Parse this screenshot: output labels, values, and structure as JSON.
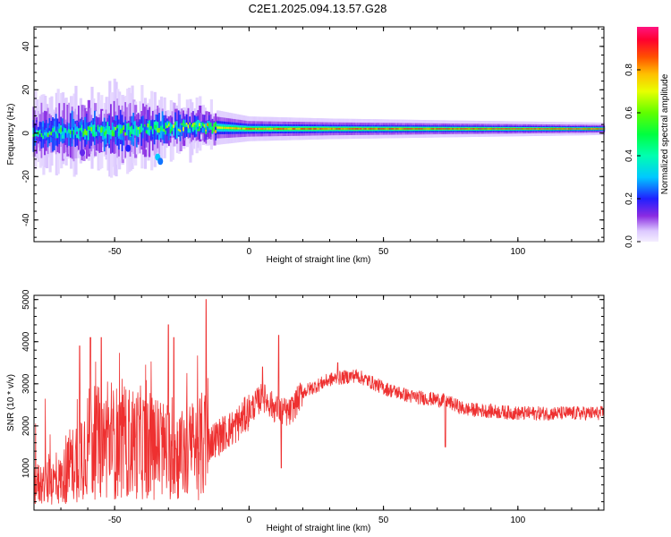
{
  "title": "C2E1.2025.094.13.57.G28",
  "chart_data": [
    {
      "type": "heatmap",
      "xlabel": "Height of straight line (km)",
      "ylabel": "Frequency (Hz)",
      "xlim": [
        -80,
        132
      ],
      "ylim": [
        -50,
        49
      ],
      "xticks": [
        -50,
        0,
        50,
        100
      ],
      "yticks": [
        -40,
        -20,
        0,
        20,
        40
      ],
      "colorbar": {
        "label": "Normalized spectral amplitude",
        "range": [
          0,
          1
        ],
        "ticks": [
          "0.0",
          "0.2",
          "0.4",
          "0.6",
          "0.8"
        ]
      },
      "ridge": [
        {
          "x": -80,
          "freq": 0,
          "spread": 7,
          "amp": 0.45
        },
        {
          "x": -50,
          "freq": 1,
          "spread": 8,
          "amp": 0.5
        },
        {
          "x": -20,
          "freq": 3,
          "spread": 5,
          "amp": 0.6
        },
        {
          "x": 0,
          "freq": 2,
          "spread": 3,
          "amp": 0.8
        },
        {
          "x": 30,
          "freq": 2,
          "spread": 2.5,
          "amp": 0.85
        },
        {
          "x": 80,
          "freq": 2,
          "spread": 2,
          "amp": 0.9
        },
        {
          "x": 132,
          "freq": 2,
          "spread": 1.5,
          "amp": 0.95
        }
      ]
    },
    {
      "type": "line",
      "xlabel": "Height of straight line (km)",
      "ylabel": "SNR (10 * v/v)",
      "xlim": [
        -80,
        132
      ],
      "ylim": [
        0,
        5100
      ],
      "xticks": [
        -50,
        0,
        50,
        100
      ],
      "yticks": [
        1000,
        2000,
        3000,
        4000,
        5000
      ],
      "color": "#ee3030",
      "trend": [
        {
          "x": -80,
          "y": 600
        },
        {
          "x": -70,
          "y": 700
        },
        {
          "x": -60,
          "y": 1600
        },
        {
          "x": -40,
          "y": 1600
        },
        {
          "x": -25,
          "y": 1300
        },
        {
          "x": -15,
          "y": 1600
        },
        {
          "x": -5,
          "y": 2000
        },
        {
          "x": 5,
          "y": 2700
        },
        {
          "x": 10,
          "y": 2400
        },
        {
          "x": 15,
          "y": 2300
        },
        {
          "x": 20,
          "y": 2800
        },
        {
          "x": 30,
          "y": 3100
        },
        {
          "x": 40,
          "y": 3200
        },
        {
          "x": 50,
          "y": 2900
        },
        {
          "x": 60,
          "y": 2700
        },
        {
          "x": 73,
          "y": 2600
        },
        {
          "x": 80,
          "y": 2400
        },
        {
          "x": 100,
          "y": 2300
        },
        {
          "x": 132,
          "y": 2300
        }
      ],
      "spikes": [
        {
          "x": -63,
          "y": 3900
        },
        {
          "x": -59,
          "y": 4100
        },
        {
          "x": -55,
          "y": 4100
        },
        {
          "x": -30,
          "y": 4400
        },
        {
          "x": -28,
          "y": 4100
        },
        {
          "x": -16,
          "y": 5000
        },
        {
          "x": 11,
          "y": 4150
        },
        {
          "x": 5,
          "y": 3400
        },
        {
          "x": 33,
          "y": 3500
        }
      ],
      "dips": [
        {
          "x": 12,
          "y": 1000
        },
        {
          "x": 73,
          "y": 1500
        }
      ]
    }
  ]
}
